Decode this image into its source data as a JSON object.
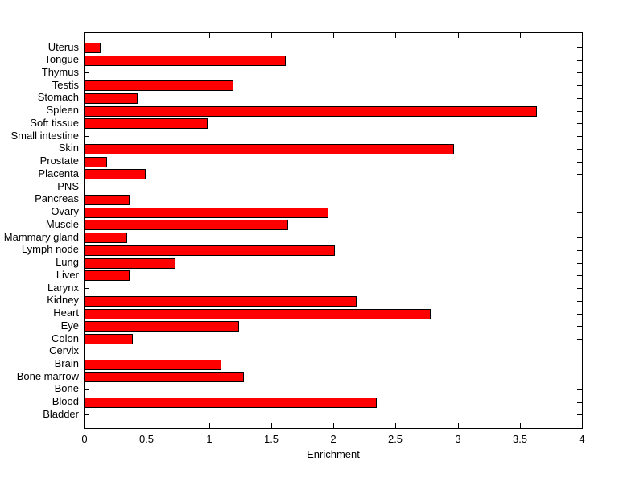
{
  "figure": {
    "background_color": "#ffffff",
    "axis_color": "#000000",
    "bar_fill_color": "#ff0000",
    "bar_edge_color": "#000000"
  },
  "chart_data": {
    "type": "bar",
    "orientation": "horizontal",
    "title": "",
    "xlabel": "Enrichment",
    "ylabel": "",
    "xlim": [
      0,
      4
    ],
    "grid": false,
    "legend": "none",
    "x_ticks": [
      0,
      0.5,
      1,
      1.5,
      2,
      2.5,
      3,
      3.5,
      4
    ],
    "x_tick_labels": [
      "0",
      "0.5",
      "1",
      "1.5",
      "2",
      "2.5",
      "3",
      "3.5",
      "4"
    ],
    "categories_top_to_bottom": [
      "Uterus",
      "Tongue",
      "Thymus",
      "Testis",
      "Stomach",
      "Spleen",
      "Soft tissue",
      "Small intestine",
      "Skin",
      "Prostate",
      "Placenta",
      "PNS",
      "Pancreas",
      "Ovary",
      "Muscle",
      "Mammary gland",
      "Lymph node",
      "Lung",
      "Liver",
      "Larynx",
      "Kidney",
      "Heart",
      "Eye",
      "Colon",
      "Cervix",
      "Brain",
      "Bone marrow",
      "Bone",
      "Blood",
      "Bladder"
    ],
    "values": [
      0.13,
      1.62,
      0,
      1.2,
      0.43,
      3.64,
      0.99,
      0,
      2.97,
      0.18,
      0.49,
      0,
      0.36,
      1.96,
      1.64,
      0.34,
      2.01,
      0.73,
      0.36,
      0,
      2.19,
      2.78,
      1.24,
      0.39,
      0,
      1.1,
      1.28,
      0,
      2.35,
      0
    ]
  }
}
